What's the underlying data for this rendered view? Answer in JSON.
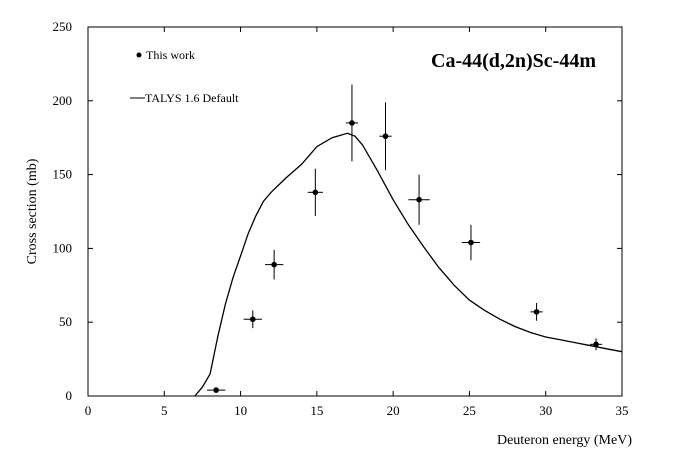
{
  "chart_data": {
    "type": "scatter",
    "title": "Ca-44(d,2n)Sc-44m",
    "xlabel": "Deuteron energy (MeV)",
    "ylabel": "Cross section (mb)",
    "xlim": [
      0,
      35
    ],
    "ylim": [
      0,
      250
    ],
    "xticks": [
      0,
      5,
      10,
      15,
      20,
      25,
      30,
      35
    ],
    "yticks": [
      0,
      50,
      100,
      150,
      200,
      250
    ],
    "grid": false,
    "legend": {
      "placement": "top-left",
      "entries": [
        {
          "label": "This work",
          "marker": "point-with-errorbars"
        },
        {
          "label": "TALYS 1.6 Default",
          "marker": "line"
        }
      ]
    },
    "series": [
      {
        "name": "This work",
        "kind": "points",
        "color": "#000000",
        "points": [
          {
            "x": 8.4,
            "y": 4,
            "xerr": 0.6,
            "yerr": 1
          },
          {
            "x": 10.8,
            "y": 52,
            "xerr": 0.6,
            "yerr": 6
          },
          {
            "x": 12.2,
            "y": 89,
            "xerr": 0.6,
            "yerr": 10
          },
          {
            "x": 14.9,
            "y": 138,
            "xerr": 0.5,
            "yerr": 16
          },
          {
            "x": 17.3,
            "y": 185,
            "xerr": 0.4,
            "yerr": 26
          },
          {
            "x": 19.5,
            "y": 176,
            "xerr": 0.4,
            "yerr": 23
          },
          {
            "x": 21.7,
            "y": 133,
            "xerr": 0.7,
            "yerr": 17
          },
          {
            "x": 25.1,
            "y": 104,
            "xerr": 0.6,
            "yerr": 12
          },
          {
            "x": 29.4,
            "y": 57,
            "xerr": 0.4,
            "yerr": 6
          },
          {
            "x": 33.3,
            "y": 35,
            "xerr": 0.4,
            "yerr": 4
          }
        ]
      },
      {
        "name": "TALYS 1.6 Default",
        "kind": "line",
        "color": "#000000",
        "x": [
          7.0,
          7.5,
          8.0,
          8.5,
          9.0,
          9.5,
          10.0,
          10.5,
          11.0,
          11.5,
          12.0,
          13.0,
          14.0,
          15.0,
          16.0,
          17.0,
          17.5,
          18.0,
          19.0,
          20.0,
          21.0,
          22.0,
          23.0,
          24.0,
          25.0,
          26.0,
          27.0,
          28.0,
          29.0,
          30.0,
          31.0,
          32.0,
          33.0,
          34.0,
          35.0
        ],
        "y": [
          0,
          6,
          15,
          40,
          62,
          80,
          95,
          110,
          122,
          132,
          138,
          148,
          157,
          169,
          175,
          178,
          176,
          170,
          152,
          133,
          116,
          101,
          87,
          75,
          65,
          58,
          52,
          47,
          43,
          40,
          38,
          36,
          34,
          32,
          30
        ]
      }
    ]
  }
}
